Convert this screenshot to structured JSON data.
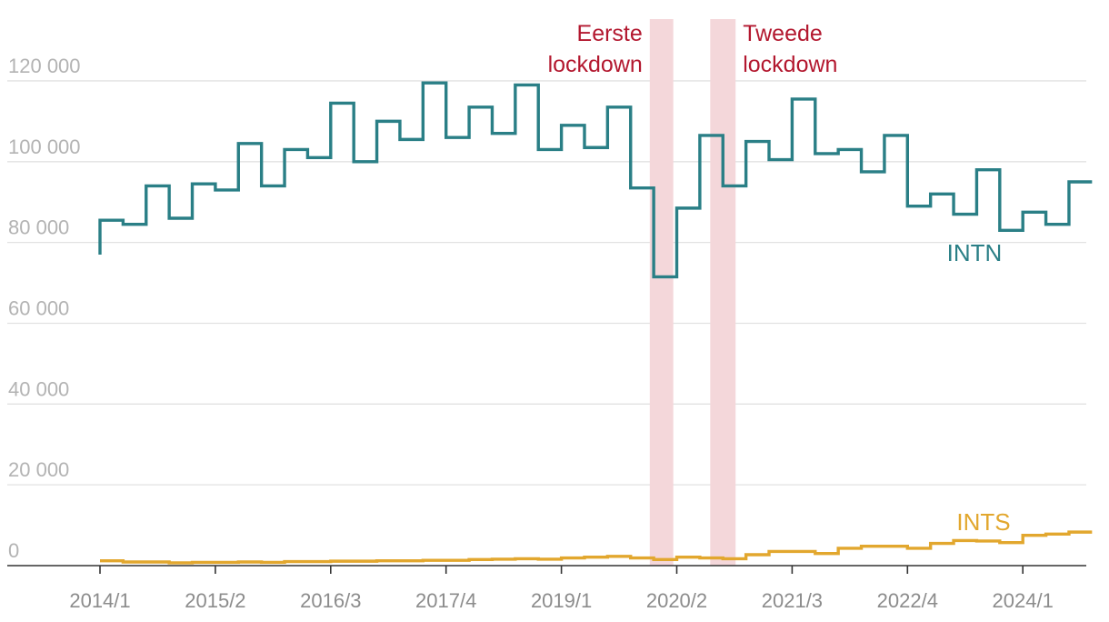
{
  "colors": {
    "intn": "#2a7f86",
    "ints": "#e2a72e",
    "lockdown_text": "#b3182f",
    "lockdown_band": "#f4d7da"
  },
  "chart_data": {
    "type": "line",
    "step": "horizontal-steps",
    "title": "",
    "xlabel": "",
    "ylabel": "",
    "ylim": [
      0,
      120000
    ],
    "yticks": [
      {
        "value": 0,
        "label": "0"
      },
      {
        "value": 20000,
        "label": "20 000"
      },
      {
        "value": 40000,
        "label": "40 000"
      },
      {
        "value": 60000,
        "label": "60 000"
      },
      {
        "value": 80000,
        "label": "80 000"
      },
      {
        "value": 100000,
        "label": "100 000"
      },
      {
        "value": 120000,
        "label": "120 000"
      }
    ],
    "xticks": [
      {
        "index": 0,
        "label": "2014/1"
      },
      {
        "index": 5,
        "label": "2015/2"
      },
      {
        "index": 10,
        "label": "2016/3"
      },
      {
        "index": 15,
        "label": "2017/4"
      },
      {
        "index": 20,
        "label": "2019/1"
      },
      {
        "index": 25,
        "label": "2020/2"
      },
      {
        "index": 30,
        "label": "2021/3"
      },
      {
        "index": 35,
        "label": "2022/4"
      },
      {
        "index": 40,
        "label": "2024/1"
      }
    ],
    "x": [
      "2014/1",
      "2014/2",
      "2014/3",
      "2014/4",
      "2015/1",
      "2015/2",
      "2015/3",
      "2015/4",
      "2016/1",
      "2016/2",
      "2016/3",
      "2016/4",
      "2017/1",
      "2017/2",
      "2017/3",
      "2017/4",
      "2018/1",
      "2018/2",
      "2018/3",
      "2018/4",
      "2019/1",
      "2019/2",
      "2019/3",
      "2019/4",
      "2020/1",
      "2020/2",
      "2020/3",
      "2020/4",
      "2021/1",
      "2021/2",
      "2021/3",
      "2021/4",
      "2022/1",
      "2022/2",
      "2022/3",
      "2022/4",
      "2023/1",
      "2023/2",
      "2023/3",
      "2023/4",
      "2024/1",
      "2024/2",
      "2024/3"
    ],
    "series": [
      {
        "name": "INTN",
        "color_key": "intn",
        "start_value": 77000,
        "values": [
          85500,
          84500,
          94000,
          86000,
          94500,
          93000,
          104500,
          94000,
          103000,
          101000,
          114500,
          100000,
          110000,
          105500,
          119500,
          106000,
          113500,
          107000,
          119000,
          103000,
          109000,
          103500,
          113500,
          93500,
          71500,
          88500,
          106500,
          94000,
          105000,
          100500,
          115500,
          102000,
          103000,
          97500,
          106500,
          89000,
          92000,
          87000,
          98000,
          83000,
          87500,
          84500,
          95000
        ]
      },
      {
        "name": "INTS",
        "color_key": "ints",
        "values": [
          1200,
          900,
          900,
          700,
          800,
          800,
          900,
          800,
          1000,
          1000,
          1100,
          1100,
          1200,
          1200,
          1300,
          1300,
          1500,
          1600,
          1700,
          1600,
          1900,
          2100,
          2300,
          1900,
          1500,
          2100,
          1900,
          1700,
          2700,
          3500,
          3500,
          3000,
          4300,
          4800,
          4800,
          4300,
          5500,
          6200,
          6100,
          5700,
          7500,
          7800,
          8300
        ]
      }
    ],
    "annotations": [
      {
        "type": "band",
        "from": 23.83,
        "to": 24.85,
        "label_lines": [
          "Eerste",
          "lockdown"
        ],
        "label_side": "left"
      },
      {
        "type": "band",
        "from": 26.45,
        "to": 27.55,
        "label_lines": [
          "Tweede",
          "lockdown"
        ],
        "label_side": "right"
      }
    ],
    "grid": true,
    "legend": "inline-labels"
  }
}
